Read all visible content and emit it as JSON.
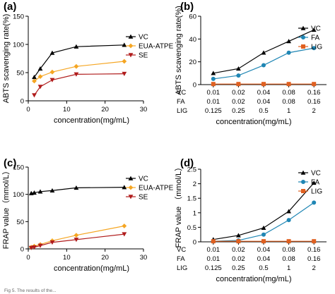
{
  "colors": {
    "VC": "#000000",
    "EUA-ATPE": "#f5a623",
    "SE": "#b01c1c",
    "FA": "#1f86b4",
    "LIG": "#e06020"
  },
  "chart_data": [
    {
      "panel": "(a)",
      "type": "line",
      "xlabel": "concentration(mg/mL)",
      "ylabel": "ABTS scavenging rate(%)",
      "xlim": [
        0,
        30
      ],
      "ylim": [
        0,
        150
      ],
      "xticks": [
        "0",
        "10",
        "20",
        "30"
      ],
      "yticks": [
        "0",
        "50",
        "100",
        "150"
      ],
      "legend_position": "right",
      "x": [
        1.56,
        3.13,
        6.25,
        12.5,
        25
      ],
      "series": [
        {
          "name": "VC",
          "values": [
            42,
            57,
            85,
            96,
            99
          ],
          "marker": "triangle-up"
        },
        {
          "name": "EUA-ATPE",
          "values": [
            35,
            43,
            51,
            61,
            70
          ],
          "marker": "diamond"
        },
        {
          "name": "SE",
          "values": [
            10,
            25,
            37,
            47,
            48
          ],
          "marker": "triangle-down"
        }
      ]
    },
    {
      "panel": "(b)",
      "type": "line",
      "xlabel": "concentration(mg/mL)",
      "ylabel": "ABTS scavenging rate(%)",
      "ylim": [
        0,
        60
      ],
      "yticks": [
        "0",
        "20",
        "40",
        "60"
      ],
      "legend_position": "top-right",
      "categories": {
        "VC": [
          "0.01",
          "0.02",
          "0.04",
          "0.08",
          "0.16"
        ],
        "FA": [
          "0.01",
          "0.02",
          "0.04",
          "0.08",
          "0.16"
        ],
        "LIG": [
          "0.125",
          "0.25",
          "0.5",
          "1",
          "2"
        ]
      },
      "row_labels": [
        "VC",
        "FA",
        "LIG"
      ],
      "series": [
        {
          "name": "VC",
          "values": [
            10,
            14,
            28,
            38,
            48
          ],
          "marker": "triangle-up"
        },
        {
          "name": "FA",
          "values": [
            5,
            8,
            17,
            28,
            32
          ],
          "marker": "circle"
        },
        {
          "name": "LIG",
          "values": [
            0.5,
            0.5,
            0.5,
            0.5,
            0.5
          ],
          "marker": "square"
        }
      ]
    },
    {
      "panel": "(c)",
      "type": "line",
      "xlabel": "concentration(mg/mL)",
      "ylabel": "FRAP value（mmol/L）",
      "xlim": [
        0,
        30
      ],
      "ylim": [
        0,
        150
      ],
      "xticks": [
        "0",
        "10",
        "20",
        "30"
      ],
      "yticks": [
        "0",
        "50",
        "100",
        "150"
      ],
      "legend_position": "top-right",
      "x": [
        0.78,
        1.56,
        3.13,
        6.25,
        12.5,
        25
      ],
      "series": [
        {
          "name": "VC",
          "values": [
            102,
            103,
            105,
            107,
            112,
            113
          ],
          "marker": "triangle-up"
        },
        {
          "name": "EUA-ATPE",
          "values": [
            3,
            5,
            8,
            15,
            25,
            42
          ],
          "marker": "diamond"
        },
        {
          "name": "SE",
          "values": [
            2,
            3,
            6,
            12,
            17,
            27
          ],
          "marker": "triangle-down"
        }
      ]
    },
    {
      "panel": "(d)",
      "type": "line",
      "xlabel": "concentration(mg/mL)",
      "ylabel": "FRAP value （mmol/L）",
      "ylim": [
        0,
        2.5
      ],
      "yticks": [
        "0",
        "0.5",
        "1",
        "1.5",
        "2",
        "2.5"
      ],
      "legend_position": "top-right",
      "categories": {
        "VC": [
          "0.01",
          "0.02",
          "0.04",
          "0.08",
          "0.16"
        ],
        "FA": [
          "0.01",
          "0.02",
          "0.04",
          "0.08",
          "0.16"
        ],
        "LIG": [
          "0.125",
          "0.25",
          "0.5",
          "1",
          "2"
        ]
      },
      "row_labels": [
        "VC",
        "FA",
        "LIG"
      ],
      "series": [
        {
          "name": "VC",
          "values": [
            0.08,
            0.22,
            0.48,
            1.05,
            2.03
          ],
          "marker": "triangle-up"
        },
        {
          "name": "FA",
          "values": [
            0.02,
            0.05,
            0.25,
            0.75,
            1.35
          ],
          "marker": "circle"
        },
        {
          "name": "LIG",
          "values": [
            0.02,
            0.02,
            0.02,
            0.02,
            0.02
          ],
          "marker": "square"
        }
      ]
    }
  ],
  "caption_fragment": "Fig 5. The results of the..."
}
